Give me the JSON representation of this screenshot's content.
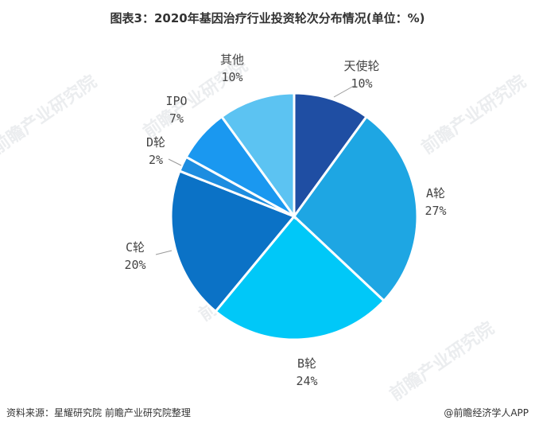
{
  "title": "图表3：2020年基因治疗行业投资轮次分布情况(单位：%)",
  "footer": {
    "source": "资料来源：星耀研究院 前瞻产业研究院整理",
    "brand": "@前瞻经济学人APP"
  },
  "watermark": "前瞻产业研究院",
  "chart_data": {
    "type": "pie",
    "title": "图表3：2020年基因治疗行业投资轮次分布情况(单位：%)",
    "unit": "%",
    "start": "12 o'clock, clockwise",
    "slices": [
      {
        "name": "天使轮",
        "value": 10,
        "pct": "10%",
        "color": "#1f4ea3"
      },
      {
        "name": "A轮",
        "value": 27,
        "pct": "27%",
        "color": "#1ea6e3"
      },
      {
        "name": "B轮",
        "value": 24,
        "pct": "24%",
        "color": "#00c8f8"
      },
      {
        "name": "C轮",
        "value": 20,
        "pct": "20%",
        "color": "#0b72c6"
      },
      {
        "name": "D轮",
        "value": 2,
        "pct": "2%",
        "color": "#1d8de0"
      },
      {
        "name": "IPO",
        "value": 7,
        "pct": "7%",
        "color": "#1a98f0"
      },
      {
        "name": "其他",
        "value": 10,
        "pct": "10%",
        "color": "#5cc3f2"
      }
    ]
  }
}
